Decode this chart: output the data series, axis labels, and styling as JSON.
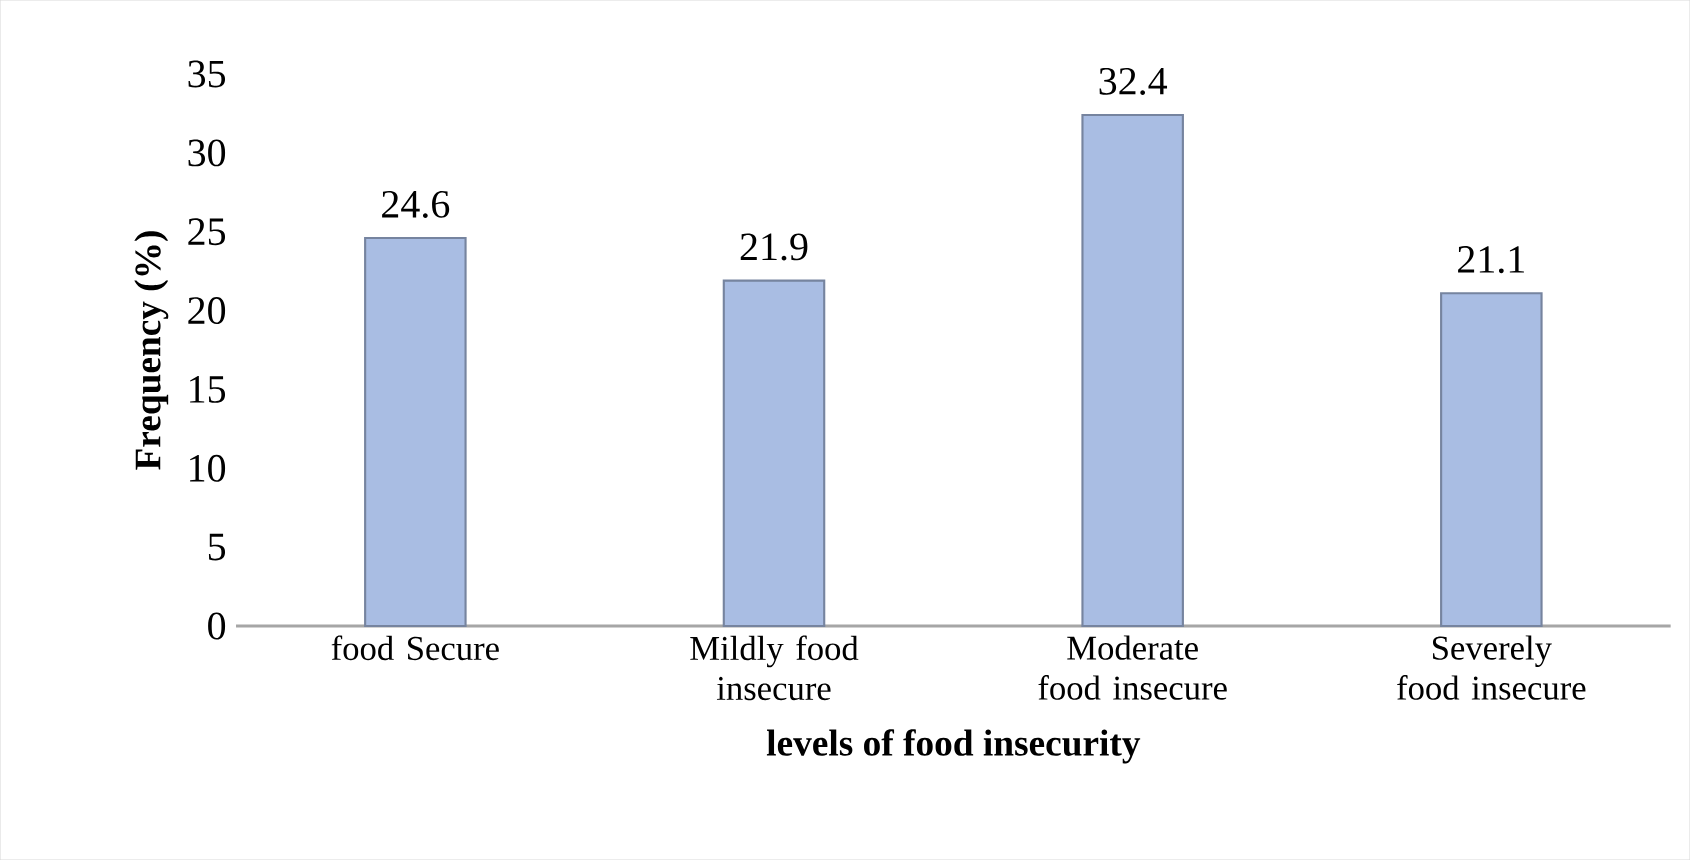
{
  "chart_data": {
    "type": "bar",
    "categories": [
      "food Secure",
      "Mildly food insecure",
      "Moderate food insecure",
      "Severely food insecure"
    ],
    "values": [
      24.6,
      21.9,
      32.4,
      21.1
    ],
    "color": "#a9bde3",
    "xlabel": "levels of food insecurity",
    "ylabel": "Frequency (%)",
    "ylim": [
      0,
      35
    ],
    "yticks": [
      0,
      5,
      10,
      15,
      20,
      25,
      30,
      35
    ],
    "data_labels": true,
    "grid": false
  }
}
